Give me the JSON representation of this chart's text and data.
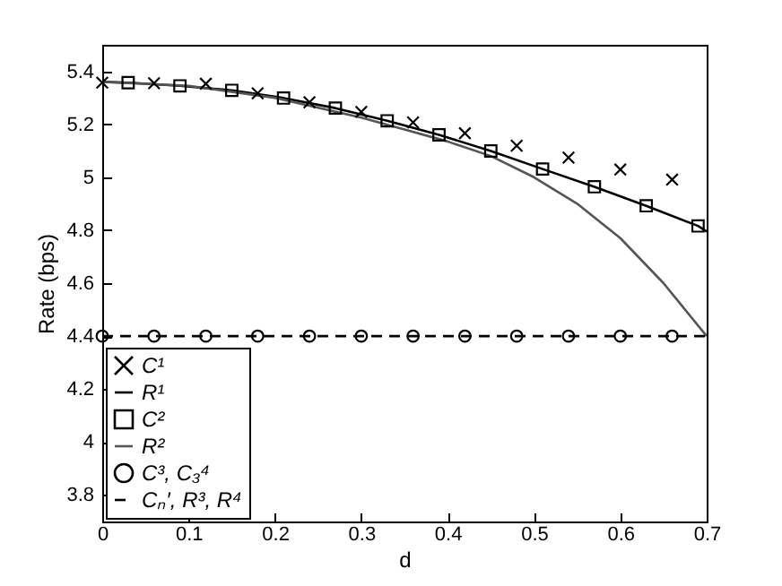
{
  "chart_data": {
    "type": "line",
    "xlabel": "d",
    "ylabel": "Rate (bps)",
    "xlim": [
      0,
      0.7
    ],
    "xticks": [
      0,
      0.1,
      0.2,
      0.3,
      0.4,
      0.5,
      0.6,
      0.7
    ],
    "ylim": [
      3.7,
      5.5
    ],
    "yticks": [
      3.8,
      4,
      4.2,
      4.4,
      4.6,
      4.8,
      5,
      5.2,
      5.4
    ],
    "grid": false,
    "legend": "bottom left",
    "series": [
      {
        "name": "C¹",
        "type": "scatter",
        "marker": "cross",
        "color": "#000000",
        "x": [
          0,
          0.06,
          0.12,
          0.18,
          0.24,
          0.3,
          0.36,
          0.42,
          0.48,
          0.54,
          0.6,
          0.66
        ],
        "values": [
          5.357,
          5.355,
          5.353,
          5.317,
          5.283,
          5.247,
          5.207,
          5.166,
          5.119,
          5.074,
          5.029,
          4.991
        ]
      },
      {
        "name": "R¹",
        "type": "line",
        "line_style": "solid",
        "color": "#000000",
        "x": [
          0,
          0.03,
          0.09,
          0.15,
          0.21,
          0.27,
          0.33,
          0.39,
          0.45,
          0.51,
          0.57,
          0.63,
          0.69,
          0.7
        ],
        "values": [
          5.36,
          5.357,
          5.345,
          5.328,
          5.299,
          5.261,
          5.213,
          5.16,
          5.099,
          5.031,
          4.964,
          4.892,
          4.816,
          4.795
        ]
      },
      {
        "name": "C²",
        "type": "scatter",
        "marker": "square",
        "color": "#000000",
        "x": [
          0.03,
          0.09,
          0.15,
          0.21,
          0.27,
          0.33,
          0.39,
          0.45,
          0.51,
          0.57,
          0.63,
          0.69
        ],
        "values": [
          5.357,
          5.345,
          5.328,
          5.299,
          5.261,
          5.213,
          5.16,
          5.099,
          5.031,
          4.964,
          4.892,
          4.816
        ]
      },
      {
        "name": "R²",
        "type": "line",
        "line_style": "solid",
        "color": "#555555",
        "x": [
          0,
          0.1,
          0.2,
          0.3,
          0.35,
          0.4,
          0.45,
          0.5,
          0.55,
          0.6,
          0.65,
          0.7
        ],
        "values": [
          5.36,
          5.345,
          5.3,
          5.225,
          5.18,
          5.135,
          5.08,
          5.0,
          4.9,
          4.77,
          4.6,
          4.4
        ]
      },
      {
        "name": "C³, C₃⁴",
        "type": "scatter",
        "marker": "circle",
        "color": "#000000",
        "x": [
          0,
          0.06,
          0.12,
          0.18,
          0.24,
          0.3,
          0.36,
          0.42,
          0.48,
          0.54,
          0.6,
          0.66
        ],
        "values": [
          4.4,
          4.4,
          4.4,
          4.4,
          4.4,
          4.4,
          4.4,
          4.4,
          4.4,
          4.4,
          4.4,
          4.4
        ]
      },
      {
        "name": "Cₙ′, R³, R⁴",
        "type": "line",
        "line_style": "dashed",
        "color": "#000000",
        "x": [
          0,
          0.7
        ],
        "values": [
          4.4,
          4.4
        ]
      }
    ]
  }
}
